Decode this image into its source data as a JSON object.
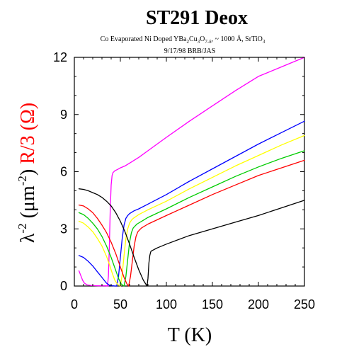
{
  "chart_data": {
    "type": "line",
    "title": "ST291 Deox",
    "subtitle": {
      "p1": "Co Evaporated Ni Doped YBa",
      "s1": "2",
      "p2": "Cu",
      "s2": "3",
      "p3": "O",
      "s3": "7-δ",
      "p4": ",  ~ 1000 Å,  SrTiO",
      "s4": "3"
    },
    "date_line": "9/17/98   BRB/JAS",
    "xlabel": "T (K)",
    "ylabel": {
      "lambda_part": "λ",
      "lambda_sup": "-2",
      "lambda_unit_open": " (μm",
      "unit_sup": "-2",
      "lambda_close": ")  ",
      "resistance_part": "R/3 (Ω)"
    },
    "xlim": [
      0,
      250
    ],
    "ylim": [
      0,
      12
    ],
    "xticks": [
      "0",
      "50",
      "100",
      "150",
      "200",
      "250"
    ],
    "yticks": [
      "0",
      "3",
      "6",
      "9",
      "12"
    ],
    "xtick_values": [
      0,
      50,
      100,
      150,
      200,
      250
    ],
    "ytick_values": [
      0,
      3,
      6,
      9,
      12
    ],
    "colors": {
      "lambda_axis": "#000000",
      "resistance_axis": "#ff0000"
    },
    "series": [
      {
        "kind": "resistance",
        "color": "#ff00ff",
        "x": [
          36,
          37,
          38,
          39,
          40,
          41,
          42,
          44,
          47,
          50,
          55,
          60,
          70,
          80,
          100,
          125,
          150,
          175,
          200,
          225,
          250
        ],
        "y": [
          0,
          0.5,
          2.0,
          4.0,
          5.3,
          5.8,
          5.95,
          6.05,
          6.12,
          6.2,
          6.3,
          6.45,
          6.75,
          7.1,
          7.8,
          8.65,
          9.45,
          10.25,
          11.0,
          11.5,
          12.0
        ]
      },
      {
        "kind": "lambda",
        "color": "#ff00ff",
        "x": [
          5,
          7,
          9,
          11,
          14,
          18,
          22,
          26,
          30,
          34,
          37
        ],
        "y": [
          0.8,
          0.55,
          0.3,
          0.15,
          0.06,
          0.03,
          0.02,
          0.01,
          0.01,
          0.01,
          0.0
        ]
      },
      {
        "kind": "resistance",
        "color": "#0000ff",
        "x": [
          46,
          48,
          50,
          52,
          54,
          56,
          58,
          60,
          65,
          70,
          80,
          100,
          125,
          150,
          175,
          200,
          225,
          250
        ],
        "y": [
          0,
          0.5,
          1.5,
          2.5,
          3.2,
          3.55,
          3.7,
          3.8,
          3.95,
          4.05,
          4.3,
          4.8,
          5.5,
          6.15,
          6.8,
          7.45,
          8.05,
          8.65
        ]
      },
      {
        "kind": "lambda",
        "color": "#0000ff",
        "x": [
          5,
          10,
          15,
          20,
          25,
          30,
          35,
          38,
          40,
          42,
          44,
          46
        ],
        "y": [
          1.6,
          1.5,
          1.3,
          1.05,
          0.75,
          0.45,
          0.15,
          0.05,
          0.02,
          0.01,
          0.0,
          0.0
        ]
      },
      {
        "kind": "resistance",
        "color": "#ffff00",
        "x": [
          50,
          52,
          54,
          56,
          58,
          60,
          62,
          64,
          70,
          80,
          100,
          125,
          150,
          175,
          200,
          225,
          250
        ],
        "y": [
          0,
          0.6,
          1.6,
          2.5,
          3.0,
          3.3,
          3.45,
          3.55,
          3.75,
          4.0,
          4.45,
          5.1,
          5.7,
          6.3,
          6.85,
          7.4,
          7.9
        ]
      },
      {
        "kind": "lambda",
        "color": "#ffff00",
        "x": [
          5,
          10,
          15,
          20,
          25,
          30,
          35,
          38,
          41,
          44,
          47,
          50
        ],
        "y": [
          3.4,
          3.3,
          3.1,
          2.85,
          2.5,
          2.1,
          1.55,
          1.15,
          0.7,
          0.3,
          0.08,
          0.0
        ]
      },
      {
        "kind": "resistance",
        "color": "#00cc00",
        "x": [
          54,
          56,
          58,
          60,
          62,
          64,
          66,
          68,
          75,
          80,
          100,
          125,
          150,
          175,
          200,
          225,
          250
        ],
        "y": [
          0,
          0.5,
          1.4,
          2.3,
          2.8,
          3.05,
          3.15,
          3.25,
          3.45,
          3.6,
          4.05,
          4.65,
          5.2,
          5.75,
          6.25,
          6.7,
          7.1
        ]
      },
      {
        "kind": "lambda",
        "color": "#00cc00",
        "x": [
          5,
          10,
          15,
          20,
          25,
          30,
          35,
          40,
          44,
          48,
          51,
          54
        ],
        "y": [
          3.85,
          3.75,
          3.55,
          3.3,
          3.0,
          2.6,
          2.1,
          1.5,
          0.95,
          0.4,
          0.1,
          0.0
        ]
      },
      {
        "kind": "resistance",
        "color": "#ff0000",
        "x": [
          59,
          61,
          63,
          65,
          67,
          69,
          71,
          73,
          80,
          100,
          125,
          150,
          175,
          200,
          225,
          250
        ],
        "y": [
          0,
          0.5,
          1.3,
          2.1,
          2.6,
          2.85,
          2.95,
          3.05,
          3.25,
          3.7,
          4.25,
          4.8,
          5.3,
          5.8,
          6.2,
          6.6
        ]
      },
      {
        "kind": "lambda",
        "color": "#ff0000",
        "x": [
          5,
          10,
          15,
          20,
          25,
          30,
          35,
          40,
          45,
          50,
          54,
          57,
          59
        ],
        "y": [
          4.25,
          4.2,
          4.05,
          3.85,
          3.55,
          3.2,
          2.8,
          2.3,
          1.7,
          1.0,
          0.45,
          0.12,
          0.0
        ]
      },
      {
        "kind": "resistance",
        "color": "#000000",
        "x": [
          79,
          80,
          81,
          82,
          83,
          84,
          86,
          88,
          90,
          100,
          125,
          150,
          175,
          200,
          225,
          250
        ],
        "y": [
          0,
          0.4,
          1.2,
          1.6,
          1.8,
          1.85,
          1.9,
          1.95,
          2.0,
          2.2,
          2.65,
          3.0,
          3.35,
          3.7,
          4.1,
          4.5
        ]
      },
      {
        "kind": "lambda",
        "color": "#000000",
        "x": [
          5,
          10,
          15,
          20,
          25,
          30,
          35,
          40,
          45,
          50,
          55,
          60,
          65,
          70,
          75,
          79
        ],
        "y": [
          5.1,
          5.07,
          5.0,
          4.9,
          4.8,
          4.65,
          4.45,
          4.2,
          3.85,
          3.4,
          2.85,
          2.2,
          1.5,
          0.85,
          0.3,
          0.0
        ]
      }
    ]
  }
}
